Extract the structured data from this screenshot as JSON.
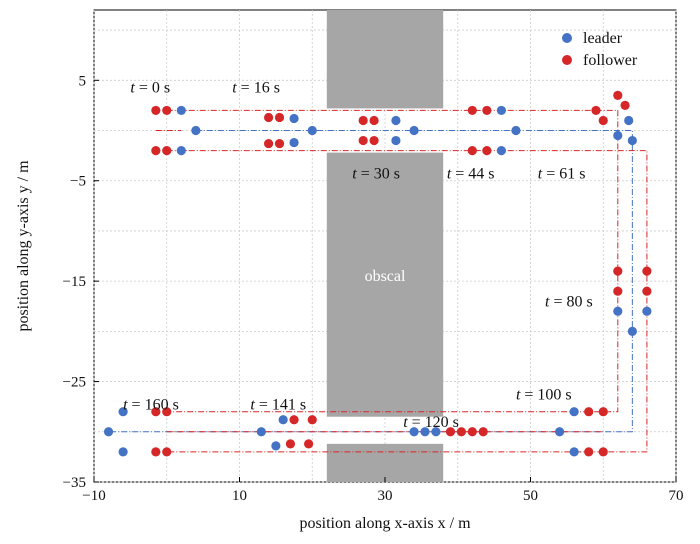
{
  "chart_data": {
    "type": "scatter",
    "title": "",
    "xlabel": "position along x-axis x / m",
    "ylabel": "position along y-axis y / m",
    "xlim": [
      -10,
      70
    ],
    "ylim": [
      -35,
      12
    ],
    "xticks": [
      -10,
      10,
      30,
      50,
      70
    ],
    "yticks": [
      5,
      -5,
      -15,
      -25,
      -35
    ],
    "grid": true,
    "legend_position": "top-right",
    "colors": {
      "leader": "#4472c4",
      "follower": "#d62728",
      "obstacle": "#a6a6a6",
      "grid": "#cccccc"
    },
    "obstacle": {
      "label": "obscal",
      "rects": [
        {
          "x0": 22,
          "x1": 38,
          "y0": 2.2,
          "y1": 12
        },
        {
          "x0": 22,
          "x1": 38,
          "y0": -28.5,
          "y1": -2.2
        },
        {
          "x0": 22,
          "x1": 38,
          "y0": -35,
          "y1": -31.2
        }
      ]
    },
    "series": [
      {
        "name": "leader",
        "points": [
          [
            2,
            2
          ],
          [
            4,
            0
          ],
          [
            2,
            -2
          ],
          [
            17.5,
            1.2
          ],
          [
            20,
            0
          ],
          [
            17.5,
            -1.2
          ],
          [
            31.5,
            1
          ],
          [
            34,
            0
          ],
          [
            31.5,
            -1
          ],
          [
            46,
            2
          ],
          [
            48,
            0
          ],
          [
            46,
            -2
          ],
          [
            62,
            -0.5
          ],
          [
            63.5,
            1
          ],
          [
            64,
            -1
          ],
          [
            62,
            -18
          ],
          [
            64,
            -20
          ],
          [
            66,
            -18
          ],
          [
            56,
            -28
          ],
          [
            54,
            -30
          ],
          [
            56,
            -32
          ],
          [
            34,
            -30
          ],
          [
            35.5,
            -30
          ],
          [
            37,
            -30
          ],
          [
            16,
            -28.8
          ],
          [
            13,
            -30
          ],
          [
            15,
            -31.4
          ],
          [
            -6,
            -28
          ],
          [
            -8,
            -30
          ],
          [
            -6,
            -32
          ]
        ]
      },
      {
        "name": "follower",
        "points": [
          [
            -1.5,
            2
          ],
          [
            0,
            2
          ],
          [
            -1.5,
            -2
          ],
          [
            0,
            -2
          ],
          [
            14,
            1.3
          ],
          [
            15.5,
            1.3
          ],
          [
            14,
            -1.3
          ],
          [
            15.5,
            -1.3
          ],
          [
            27,
            1
          ],
          [
            28.5,
            1
          ],
          [
            27,
            -1
          ],
          [
            28.5,
            -1
          ],
          [
            42,
            2
          ],
          [
            44,
            2
          ],
          [
            42,
            -2
          ],
          [
            44,
            -2
          ],
          [
            59,
            2
          ],
          [
            60,
            1
          ],
          [
            62,
            3.5
          ],
          [
            63,
            2.5
          ],
          [
            62,
            -14
          ],
          [
            62,
            -16
          ],
          [
            66,
            -14
          ],
          [
            66,
            -16
          ],
          [
            58,
            -28
          ],
          [
            60,
            -28
          ],
          [
            58,
            -32
          ],
          [
            60,
            -32
          ],
          [
            39,
            -30
          ],
          [
            40.5,
            -30
          ],
          [
            42,
            -30
          ],
          [
            43.5,
            -30
          ],
          [
            17.5,
            -28.8
          ],
          [
            20,
            -28.8
          ],
          [
            17,
            -31.2
          ],
          [
            19.5,
            -31.2
          ],
          [
            -1.5,
            -28
          ],
          [
            0,
            -28
          ],
          [
            -1.5,
            -32
          ],
          [
            0,
            -32
          ]
        ]
      }
    ],
    "trajectories": {
      "leader": [
        [
          [
            4,
            0
          ],
          [
            60,
            0
          ],
          [
            64,
            0
          ],
          [
            64,
            -30
          ],
          [
            -8,
            -30
          ]
        ]
      ],
      "follower": [
        [
          [
            0,
            2
          ],
          [
            59,
            2
          ],
          [
            62,
            2
          ],
          [
            62,
            -28
          ],
          [
            0,
            -28
          ]
        ],
        [
          [
            0,
            -2
          ],
          [
            59,
            -2
          ],
          [
            66,
            -2
          ],
          [
            66,
            -32
          ],
          [
            0,
            -32
          ]
        ],
        [
          [
            -1.5,
            0
          ],
          [
            2,
            0
          ]
        ],
        [
          [
            0,
            -30
          ],
          [
            60,
            -30
          ]
        ]
      ]
    },
    "annotations": [
      {
        "text": "t = 0 s",
        "x": -5,
        "y": 3.8
      },
      {
        "text": "t = 16 s",
        "x": 9,
        "y": 3.8
      },
      {
        "text": "t = 30 s",
        "x": 25.5,
        "y": -4.8
      },
      {
        "text": "t = 44 s",
        "x": 38.5,
        "y": -4.8
      },
      {
        "text": "t = 61 s",
        "x": 51,
        "y": -4.8
      },
      {
        "text": "t = 80 s",
        "x": 52,
        "y": -17.5
      },
      {
        "text": "t = 100 s",
        "x": 48,
        "y": -26.8
      },
      {
        "text": "t = 120 s",
        "x": 32.5,
        "y": -29.5
      },
      {
        "text": "t = 141 s",
        "x": 11.5,
        "y": -27.8
      },
      {
        "text": "t = 160 s",
        "x": -6,
        "y": -27.8
      }
    ]
  }
}
